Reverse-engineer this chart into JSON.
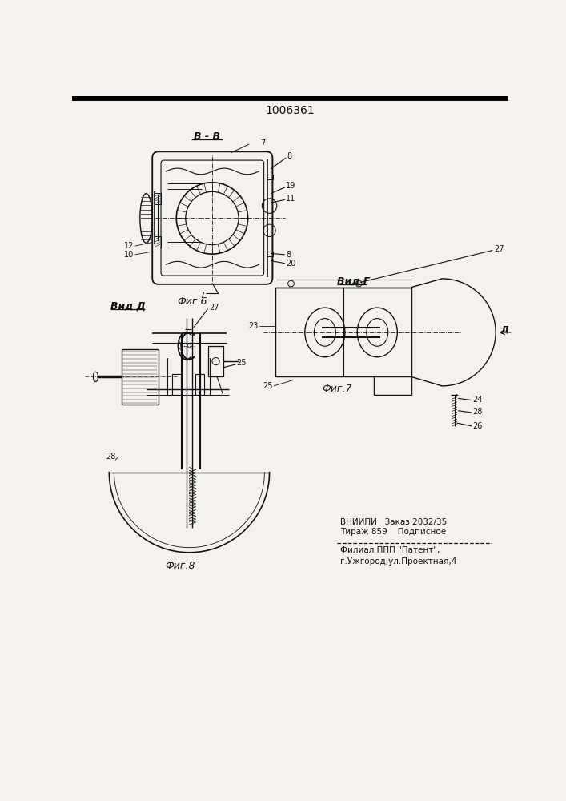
{
  "title": "1006361",
  "bg_color": "#f5f2ee",
  "line_color": "#111111",
  "fig6_label": "Фиг.6",
  "fig7_label": "Фиг.7",
  "fig8_label": "Фиг.8",
  "section_bb": "B - B",
  "view_g": "Вид Г",
  "view_d": "Вид Д",
  "arrow_d": "Д",
  "footnote_line1": "ВНИИПИ   Заказ 2032/35",
  "footnote_line2": "Тираж 859    Подписное",
  "footnote_line3": "Филиал ППП \"Патент\",",
  "footnote_line4": "г.Ужгород,ул.Проектная,4"
}
